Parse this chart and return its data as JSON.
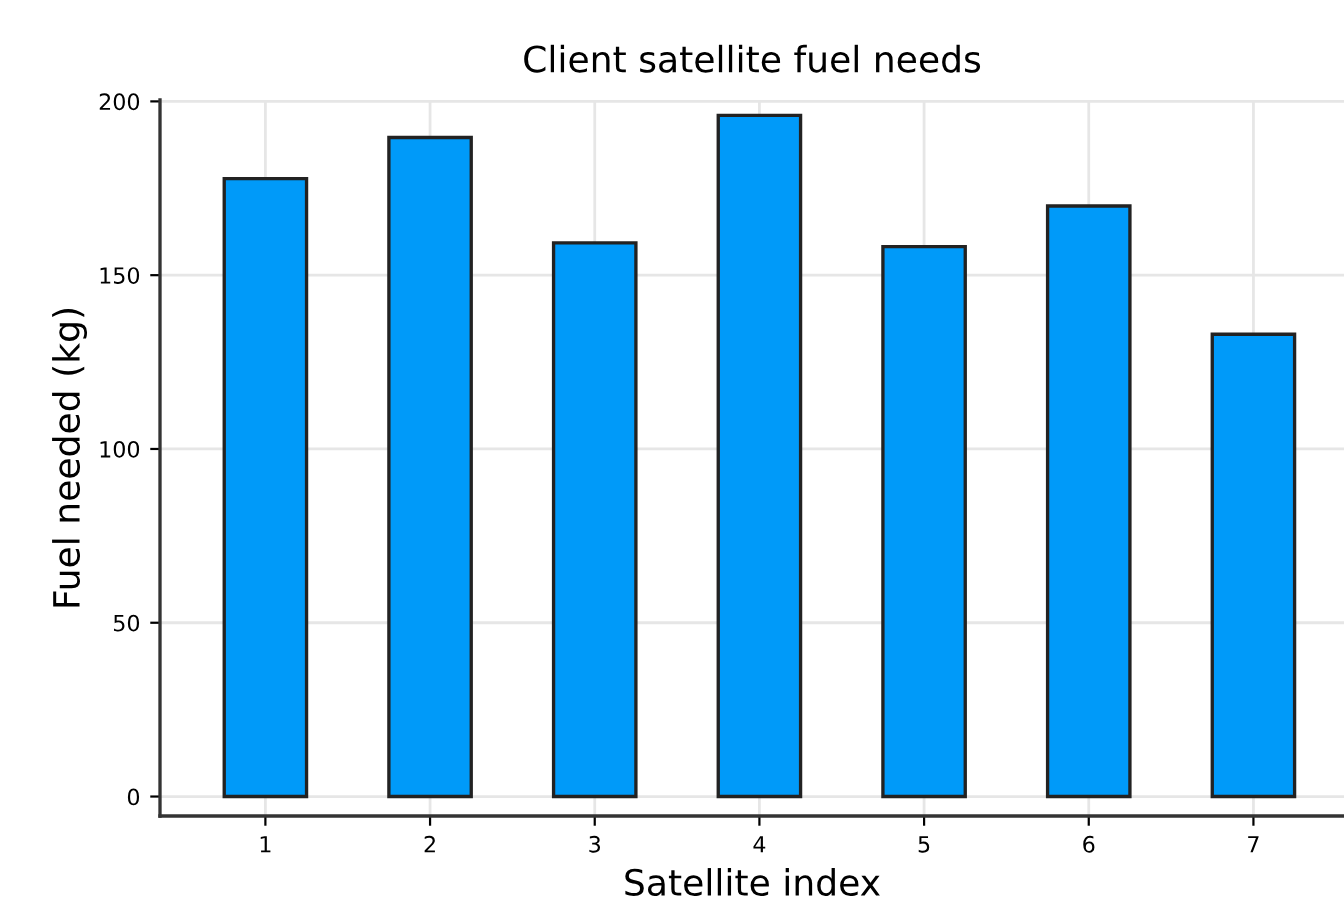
{
  "chart_data": {
    "type": "bar",
    "title": "Client satellite fuel needs",
    "xlabel": "Satellite index",
    "ylabel": "Fuel needed (kg)",
    "categories": [
      "1",
      "2",
      "3",
      "4",
      "5",
      "6",
      "7"
    ],
    "values": [
      177.8,
      189.6,
      159.3,
      196.0,
      158.2,
      169.9,
      133.0
    ],
    "color": "#009af9",
    "ylim": [
      -5.6,
      200.4
    ],
    "yticks": [
      0,
      50,
      100,
      150,
      200
    ],
    "grid": true,
    "legend": false
  }
}
